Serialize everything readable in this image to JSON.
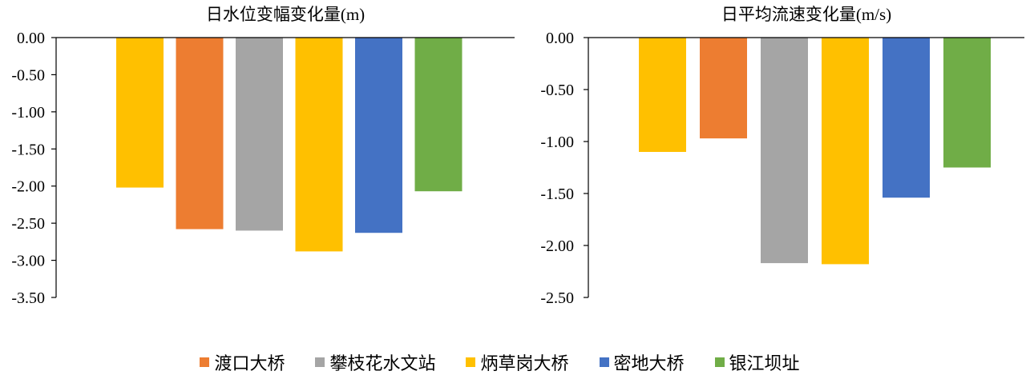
{
  "chart_data": [
    {
      "type": "bar",
      "title": "日水位变幅变化量(m)",
      "ylim": [
        -3.5,
        0
      ],
      "yticks": [
        "0.00",
        "-0.50",
        "-1.00",
        "-1.50",
        "-2.00",
        "-2.50",
        "-3.00",
        "-3.50"
      ],
      "tick_values": [
        0,
        -0.5,
        -1.0,
        -1.5,
        -2.0,
        -2.5,
        -3.0,
        -3.5
      ],
      "bars": [
        {
          "value": -2.02,
          "color": "#FFC000"
        },
        {
          "value": -2.58,
          "color": "#ED7D31"
        },
        {
          "value": -2.6,
          "color": "#A5A5A5"
        },
        {
          "value": -2.88,
          "color": "#FFC000"
        },
        {
          "value": -2.63,
          "color": "#4472C4"
        },
        {
          "value": -2.07,
          "color": "#70AD47"
        }
      ],
      "grid": false
    },
    {
      "type": "bar",
      "title": "日平均流速变化量(m/s)",
      "ylim": [
        -2.5,
        0
      ],
      "yticks": [
        "0.00",
        "-0.50",
        "-1.00",
        "-1.50",
        "-2.00",
        "-2.50"
      ],
      "tick_values": [
        0,
        -0.5,
        -1.0,
        -1.5,
        -2.0,
        -2.5
      ],
      "bars": [
        {
          "value": -1.1,
          "color": "#FFC000"
        },
        {
          "value": -0.97,
          "color": "#ED7D31"
        },
        {
          "value": -2.17,
          "color": "#A5A5A5"
        },
        {
          "value": -2.18,
          "color": "#FFC000"
        },
        {
          "value": -1.54,
          "color": "#4472C4"
        },
        {
          "value": -1.25,
          "color": "#70AD47"
        }
      ],
      "grid": false
    }
  ],
  "legend": [
    {
      "label": "渡口大桥",
      "color": "#ED7D31"
    },
    {
      "label": "攀枝花水文站",
      "color": "#A5A5A5"
    },
    {
      "label": "炳草岗大桥",
      "color": "#FFC000"
    },
    {
      "label": "密地大桥",
      "color": "#4472C4"
    },
    {
      "label": "银江坝址",
      "color": "#70AD47"
    }
  ]
}
